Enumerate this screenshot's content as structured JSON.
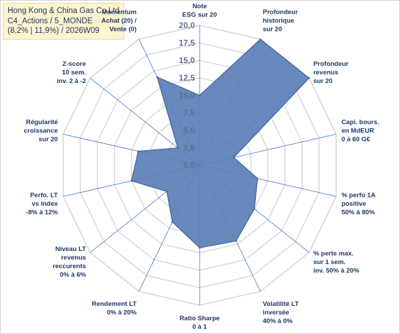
{
  "chart_data": {
    "type": "radar",
    "title_lines": [
      "Hong Kong & China Gas Co Ltd",
      "C4_Actions / 5_MONDE",
      "(8,2% | 11,9%) / 2026W09"
    ],
    "categories": [
      [
        "Note",
        "ESG sur 20"
      ],
      [
        "Profondeur",
        "historique",
        "sur 20"
      ],
      [
        "Profondeur",
        "revenus",
        "sur 20"
      ],
      [
        "Capi. bours.",
        "en MdEUR",
        "0 à 60 G€"
      ],
      [
        "% perfo 1A",
        "positive",
        "50% à 80%"
      ],
      [
        "% perte max.",
        "sur 1 sem.",
        "inv. 50% à 20%"
      ],
      [
        "Volatilité LT",
        "inversée",
        "40% à 0%"
      ],
      [
        "Ratio Sharpe",
        "0 à 1"
      ],
      [
        "Rendement LT",
        "0% à 20%"
      ],
      [
        "Niveau LT",
        "revenus",
        "reccurents",
        "0% à 6%"
      ],
      [
        "Perfo. LT",
        "vs Index",
        "-8% à 12%"
      ],
      [
        "Régularité",
        "croissance",
        "sur 20"
      ],
      [
        "Z-score",
        "10 sem.",
        "inv. 2 à -2"
      ],
      [
        "Momentum",
        "Achat (20) /",
        "Vente (0)"
      ]
    ],
    "values": [
      10.0,
      20.0,
      20.0,
      5.0,
      8.5,
      10.0,
      12.0,
      11.8,
      9.0,
      6.0,
      10.0,
      9.0,
      4.0,
      14.0
    ],
    "rmin": 0,
    "rmax": 20,
    "ticks": [
      "0,0",
      "2,5",
      "5,0",
      "7,5",
      "10,0",
      "12,5",
      "15,0",
      "17,5",
      "20,0"
    ],
    "colors": {
      "fill": "#5b7fb6",
      "stroke": "#3f63a0",
      "grid": "#d6d6d6",
      "axis": "#4472c4"
    }
  }
}
